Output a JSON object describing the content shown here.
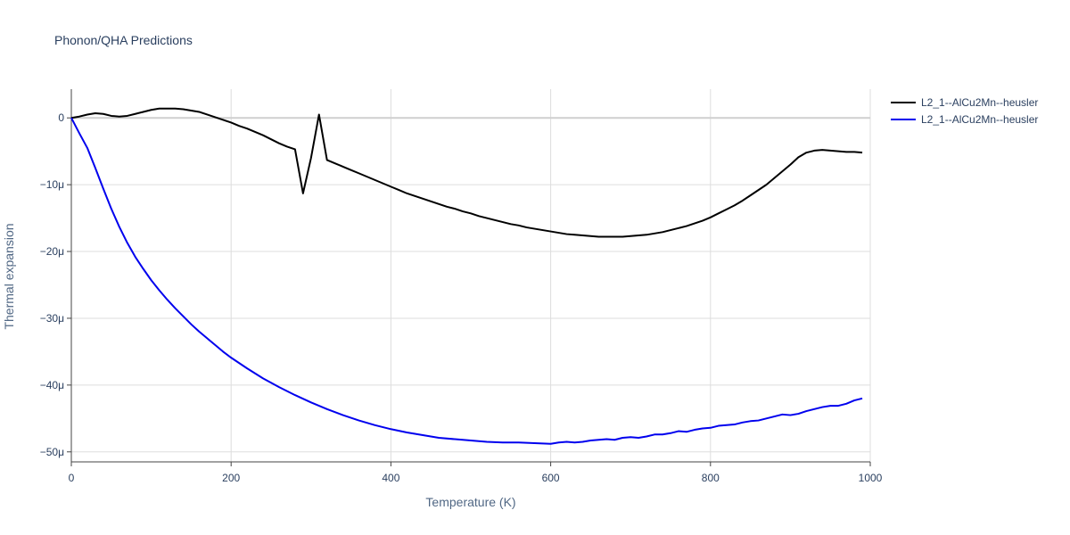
{
  "chart_data": {
    "type": "line",
    "title": "Phonon/QHA Predictions",
    "xlabel": "Temperature (K)",
    "ylabel": "Thermal expansion",
    "xlim": [
      0,
      1000
    ],
    "ylim": [
      -51.5,
      4.3
    ],
    "y_unit_suffix": "μ",
    "grid": true,
    "legend_position": "top-right",
    "x_ticks": [
      0,
      200,
      400,
      600,
      800,
      1000
    ],
    "x_tick_labels": [
      "0",
      "200",
      "400",
      "600",
      "800",
      "1000"
    ],
    "y_ticks": [
      0,
      -10,
      -20,
      -30,
      -40,
      -50
    ],
    "y_tick_labels": [
      "0",
      "−10μ",
      "−20μ",
      "−30μ",
      "−40μ",
      "−50μ"
    ],
    "series": [
      {
        "name": "L2_1--AlCu2Mn--heusler",
        "color": "#000000",
        "x": [
          0,
          10,
          20,
          30,
          40,
          50,
          60,
          70,
          80,
          90,
          100,
          110,
          120,
          130,
          140,
          150,
          160,
          170,
          180,
          190,
          200,
          210,
          220,
          230,
          240,
          250,
          260,
          270,
          280,
          290,
          300,
          310,
          320,
          330,
          340,
          350,
          360,
          370,
          380,
          390,
          400,
          410,
          420,
          430,
          440,
          450,
          460,
          470,
          480,
          490,
          500,
          510,
          520,
          530,
          540,
          550,
          560,
          570,
          580,
          590,
          600,
          610,
          620,
          630,
          640,
          650,
          660,
          670,
          680,
          690,
          700,
          710,
          720,
          730,
          740,
          750,
          760,
          770,
          780,
          790,
          800,
          810,
          820,
          830,
          840,
          850,
          860,
          870,
          880,
          890,
          900,
          910,
          920,
          930,
          940,
          950,
          960,
          970,
          980,
          990
        ],
        "y": [
          0,
          0.2,
          0.5,
          0.7,
          0.6,
          0.3,
          0.2,
          0.3,
          0.6,
          0.9,
          1.2,
          1.4,
          1.4,
          1.4,
          1.3,
          1.1,
          0.9,
          0.5,
          0.1,
          -0.3,
          -0.7,
          -1.2,
          -1.6,
          -2.1,
          -2.6,
          -3.2,
          -3.8,
          -4.3,
          -4.7,
          -11.3,
          -6.0,
          0.5,
          -6.3,
          -6.8,
          -7.3,
          -7.8,
          -8.3,
          -8.8,
          -9.3,
          -9.8,
          -10.3,
          -10.8,
          -11.3,
          -11.7,
          -12.1,
          -12.5,
          -12.9,
          -13.3,
          -13.6,
          -14.0,
          -14.3,
          -14.7,
          -15.0,
          -15.3,
          -15.6,
          -15.9,
          -16.1,
          -16.4,
          -16.6,
          -16.8,
          -17.0,
          -17.2,
          -17.4,
          -17.5,
          -17.6,
          -17.7,
          -17.8,
          -17.8,
          -17.8,
          -17.8,
          -17.7,
          -17.6,
          -17.5,
          -17.3,
          -17.1,
          -16.8,
          -16.5,
          -16.2,
          -15.8,
          -15.4,
          -14.9,
          -14.3,
          -13.7,
          -13.1,
          -12.4,
          -11.6,
          -10.8,
          -10.0,
          -9.0,
          -8.0,
          -7.0,
          -5.9,
          -5.2,
          -4.9,
          -4.8,
          -4.9,
          -5.0,
          -5.1,
          -5.1,
          -5.2
        ]
      },
      {
        "name": "L2_1--AlCu2Mn--heusler",
        "color": "#0000ee",
        "x": [
          0,
          10,
          20,
          30,
          40,
          50,
          60,
          70,
          80,
          90,
          100,
          110,
          120,
          130,
          140,
          150,
          160,
          170,
          180,
          190,
          200,
          220,
          240,
          260,
          280,
          300,
          320,
          340,
          360,
          380,
          400,
          420,
          440,
          460,
          480,
          500,
          520,
          540,
          560,
          580,
          600,
          610,
          620,
          630,
          640,
          650,
          660,
          670,
          680,
          690,
          700,
          710,
          720,
          730,
          740,
          750,
          760,
          770,
          780,
          790,
          800,
          810,
          820,
          830,
          840,
          850,
          860,
          870,
          880,
          890,
          900,
          910,
          920,
          930,
          940,
          950,
          960,
          970,
          980,
          990
        ],
        "y": [
          0,
          -2.3,
          -4.5,
          -7.5,
          -10.6,
          -13.6,
          -16.3,
          -18.7,
          -20.8,
          -22.6,
          -24.3,
          -25.8,
          -27.2,
          -28.5,
          -29.7,
          -30.9,
          -32.0,
          -33.0,
          -34.0,
          -35.0,
          -35.9,
          -37.5,
          -39.0,
          -40.3,
          -41.5,
          -42.6,
          -43.6,
          -44.5,
          -45.3,
          -46.0,
          -46.6,
          -47.1,
          -47.5,
          -47.9,
          -48.1,
          -48.3,
          -48.5,
          -48.6,
          -48.6,
          -48.7,
          -48.8,
          -48.6,
          -48.5,
          -48.6,
          -48.5,
          -48.3,
          -48.2,
          -48.1,
          -48.2,
          -47.9,
          -47.8,
          -47.9,
          -47.7,
          -47.4,
          -47.4,
          -47.2,
          -46.9,
          -47.0,
          -46.7,
          -46.5,
          -46.4,
          -46.1,
          -46.0,
          -45.9,
          -45.6,
          -45.4,
          -45.3,
          -45.0,
          -44.7,
          -44.4,
          -44.5,
          -44.3,
          -43.9,
          -43.6,
          -43.3,
          -43.1,
          -43.1,
          -42.8,
          -42.3,
          -42.0
        ]
      }
    ]
  }
}
